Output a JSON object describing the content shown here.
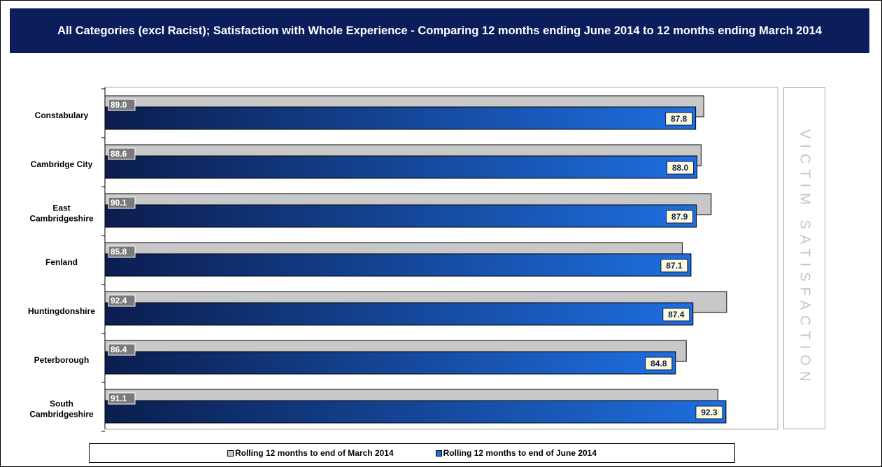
{
  "title": "All Categories (excl Racist); Satisfaction with Whole Experience - Comparing 12 months ending June 2014 to 12 months ending March 2014",
  "side_label": "VICTIM SATISFACTION",
  "colors": {
    "march": "#c8c8c8",
    "june_dark": "#0b1d4e",
    "june_light": "#1e6fe0",
    "title_bg": "#0b1d5b"
  },
  "chart_data": {
    "type": "bar",
    "orientation": "horizontal",
    "categories": [
      "Constabulary",
      "Cambridge City",
      "East Cambridgeshire",
      "Fenland",
      "Huntingdonshire",
      "Peterborough",
      "South Cambridgeshire"
    ],
    "category_lines": [
      [
        "Constabulary"
      ],
      [
        "Cambridge City"
      ],
      [
        "East",
        "Cambridgeshire"
      ],
      [
        "Fenland"
      ],
      [
        "Huntingdonshire"
      ],
      [
        "Peterborough"
      ],
      [
        "South",
        "Cambridgeshire"
      ]
    ],
    "series": [
      {
        "name": "Rolling 12 months to end of March 2014",
        "values": [
          89.0,
          88.6,
          90.1,
          85.8,
          92.4,
          86.4,
          91.1
        ]
      },
      {
        "name": "Rolling 12 months to end of June 2014",
        "values": [
          87.8,
          88.0,
          87.9,
          87.1,
          87.4,
          84.8,
          92.3
        ]
      }
    ],
    "legend": [
      "Rolling 12 months to end of March 2014",
      "Rolling 12 months to end of June 2014"
    ],
    "legend_position": "bottom",
    "grid": false
  }
}
